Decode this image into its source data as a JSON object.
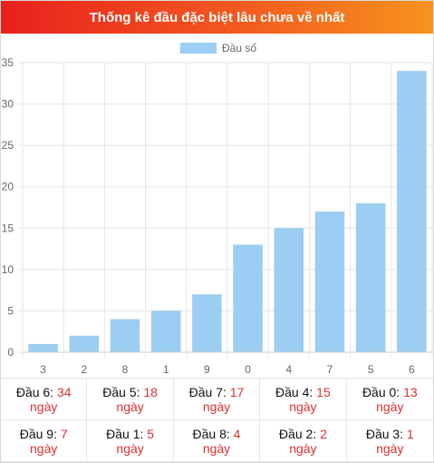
{
  "title": "Thống kê đầu đặc biệt lâu chưa về nhất",
  "colors": {
    "bar": "#9ccdf2",
    "accent": "#e03030"
  },
  "chart_data": {
    "type": "bar",
    "categories": [
      "3",
      "2",
      "8",
      "1",
      "9",
      "0",
      "4",
      "7",
      "5",
      "6"
    ],
    "series": [
      {
        "name": "Đầu số",
        "values": [
          1,
          2,
          4,
          5,
          7,
          13,
          15,
          17,
          18,
          34
        ]
      }
    ],
    "ylim": [
      0,
      35
    ],
    "yticks": [
      0,
      5,
      10,
      15,
      20,
      25,
      30,
      35
    ],
    "grid": true,
    "legend": "top-center"
  },
  "stats": [
    {
      "label": "Đầu 6:",
      "value": "34",
      "unit": "ngày"
    },
    {
      "label": "Đầu 5:",
      "value": "18",
      "unit": "ngày"
    },
    {
      "label": "Đầu 7:",
      "value": "17",
      "unit": "ngày"
    },
    {
      "label": "Đầu 4:",
      "value": "15",
      "unit": "ngày"
    },
    {
      "label": "Đầu 0:",
      "value": "13",
      "unit": "ngày"
    },
    {
      "label": "Đầu 9:",
      "value": "7",
      "unit": "ngày"
    },
    {
      "label": "Đầu 1:",
      "value": "5",
      "unit": "ngày"
    },
    {
      "label": "Đầu 8:",
      "value": "4",
      "unit": "ngày"
    },
    {
      "label": "Đầu 2:",
      "value": "2",
      "unit": "ngày"
    },
    {
      "label": "Đầu 3:",
      "value": "1",
      "unit": "ngày"
    }
  ]
}
